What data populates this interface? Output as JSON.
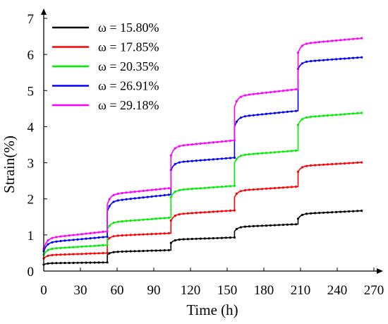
{
  "chart_data": {
    "type": "line",
    "title": "",
    "xlabel": "Time (h)",
    "ylabel": "Strain(%)",
    "xlim": [
      0,
      270
    ],
    "ylim": [
      0,
      7
    ],
    "x_ticks": [
      0,
      30,
      60,
      90,
      120,
      150,
      180,
      210,
      240,
      270
    ],
    "y_ticks": [
      0,
      1,
      2,
      3,
      4,
      5,
      6,
      7
    ],
    "grid": false,
    "legend_position": "top-left",
    "stage_times": [
      0,
      52,
      104,
      156,
      208,
      260
    ],
    "series": [
      {
        "name": "ω = 15.80%",
        "color": "#000000",
        "stage_start": [
          0.18,
          0.45,
          0.78,
          1.1,
          1.45
        ],
        "stage_end": [
          0.24,
          0.58,
          0.93,
          1.3,
          1.67
        ]
      },
      {
        "name": "ω = 17.85%",
        "color": "#ff0000",
        "stage_start": [
          0.35,
          0.85,
          1.4,
          2.05,
          2.75
        ],
        "stage_end": [
          0.5,
          1.05,
          1.68,
          2.34,
          3.01
        ]
      },
      {
        "name": "ω = 20.35%",
        "color": "#00ee00",
        "stage_start": [
          0.45,
          1.15,
          2.05,
          3.0,
          4.05
        ],
        "stage_end": [
          0.72,
          1.48,
          2.36,
          3.34,
          4.38
        ]
      },
      {
        "name": "ω = 26.91%",
        "color": "#0000ff",
        "stage_start": [
          0.55,
          1.65,
          2.8,
          4.0,
          5.6
        ],
        "stage_end": [
          0.95,
          2.12,
          3.14,
          4.44,
          5.92
        ]
      },
      {
        "name": "ω = 29.18%",
        "color": "#ff00ff",
        "stage_start": [
          0.62,
          1.85,
          3.2,
          4.55,
          6.05
        ],
        "stage_end": [
          1.1,
          2.3,
          3.62,
          5.04,
          6.45
        ]
      }
    ]
  }
}
